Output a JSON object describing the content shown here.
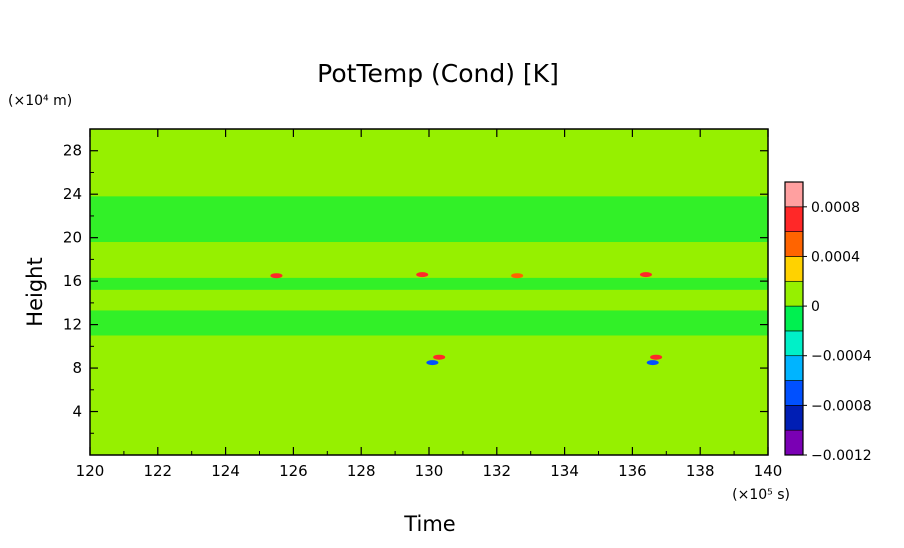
{
  "chart_data": {
    "type": "heatmap",
    "title": "PotTemp (Cond) [K]",
    "xlabel": "Time",
    "ylabel": "Height",
    "x_unit": "(×10⁵ s)",
    "y_unit": "(×10⁴ m)",
    "xlim": [
      120,
      140
    ],
    "ylim": [
      0,
      30
    ],
    "x_ticks": [
      "120",
      "122",
      "124",
      "126",
      "128",
      "130",
      "132",
      "134",
      "136",
      "138",
      "140"
    ],
    "y_ticks": [
      "4",
      "8",
      "12",
      "16",
      "20",
      "24",
      "28"
    ],
    "colorbar": {
      "colors": [
        "#7a00b4",
        "#001eb4",
        "#0050ff",
        "#00b4ff",
        "#00f0c8",
        "#00f050",
        "#96f000",
        "#ffd200",
        "#ff6400",
        "#ff2828",
        "#ffa0a0"
      ],
      "tick_labels": [
        "0.0008",
        "0.0004",
        "0",
        "−0.0004",
        "−0.0008",
        "−0.0012"
      ]
    },
    "background_color": "#96f000",
    "bands": [
      {
        "name": "",
        "y_low": 19.6,
        "y_high": 23.8,
        "color": "#32f028"
      },
      {
        "name": "",
        "y_low": 15.2,
        "y_high": 16.3,
        "color": "#32f028"
      },
      {
        "name": "",
        "y_low": 11.0,
        "y_high": 13.3,
        "color": "#32f028"
      }
    ],
    "features": [
      {
        "x": 125.5,
        "y": 16.5,
        "color": "#ff2828"
      },
      {
        "x": 129.8,
        "y": 16.6,
        "color": "#ff2828"
      },
      {
        "x": 132.6,
        "y": 16.5,
        "color": "#ff6400"
      },
      {
        "x": 136.4,
        "y": 16.6,
        "color": "#ff2828"
      },
      {
        "x": 130.3,
        "y": 9.0,
        "color": "#ff2828"
      },
      {
        "x": 136.7,
        "y": 9.0,
        "color": "#ff2828"
      },
      {
        "x": 130.1,
        "y": 8.5,
        "color": "#0050ff"
      },
      {
        "x": 136.6,
        "y": 8.5,
        "color": "#0050ff"
      }
    ]
  }
}
